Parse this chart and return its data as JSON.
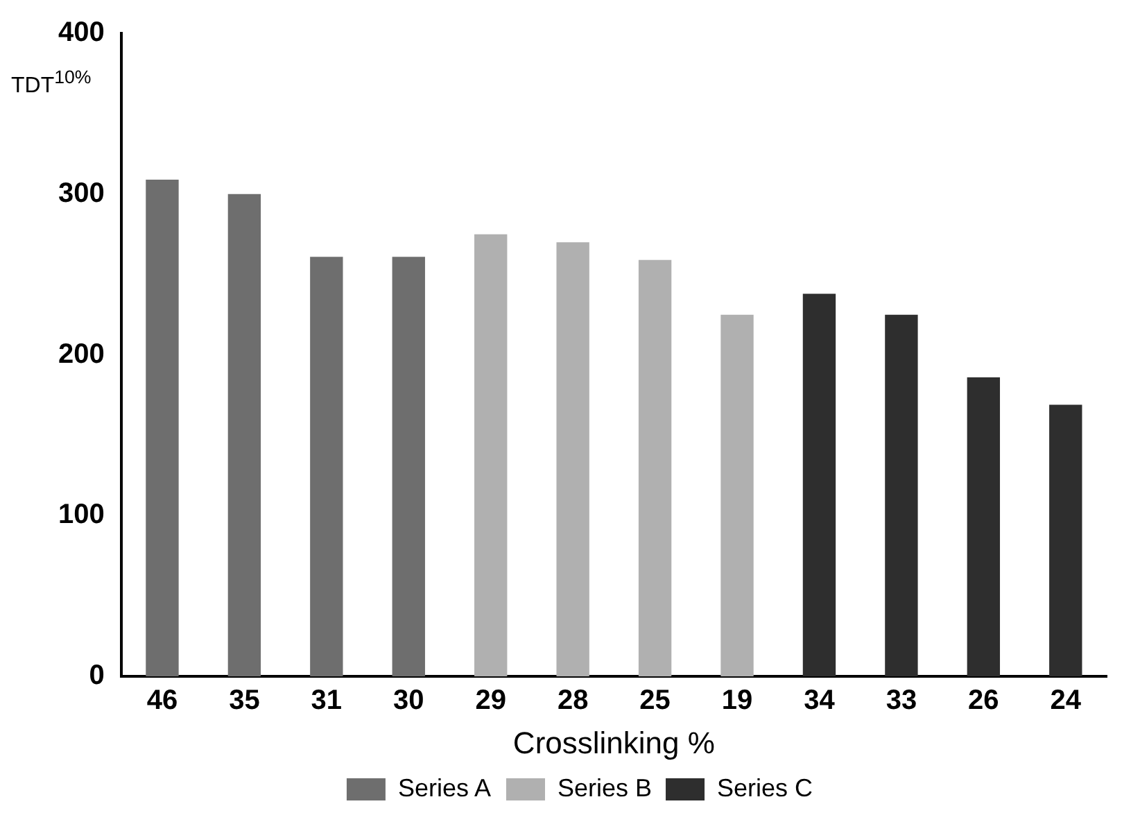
{
  "chart_data": {
    "type": "bar",
    "categories": [
      "46",
      "35",
      "31",
      "30",
      "29",
      "28",
      "25",
      "19",
      "34",
      "33",
      "26",
      "24"
    ],
    "xlabel": "Crosslinking %",
    "ylabel": "TDT$^{10%}$",
    "series": [
      {
        "name": "Series A",
        "color": "#6e6e6e",
        "values": [
          309,
          300,
          261,
          261,
          null,
          null,
          null,
          null,
          null,
          null,
          null,
          null
        ]
      },
      {
        "name": "Series B",
        "color": "#b0b0b0",
        "values": [
          null,
          null,
          null,
          null,
          275,
          270,
          259,
          225,
          null,
          null,
          null,
          null
        ]
      },
      {
        "name": "Series C",
        "color": "#2e2e2e",
        "values": [
          null,
          null,
          null,
          null,
          null,
          null,
          null,
          null,
          238,
          225,
          186,
          169
        ]
      }
    ],
    "ylim": [
      0,
      400
    ],
    "yticks": [
      0,
      100,
      200,
      300,
      400
    ],
    "grid": false,
    "legend": "bottom"
  }
}
